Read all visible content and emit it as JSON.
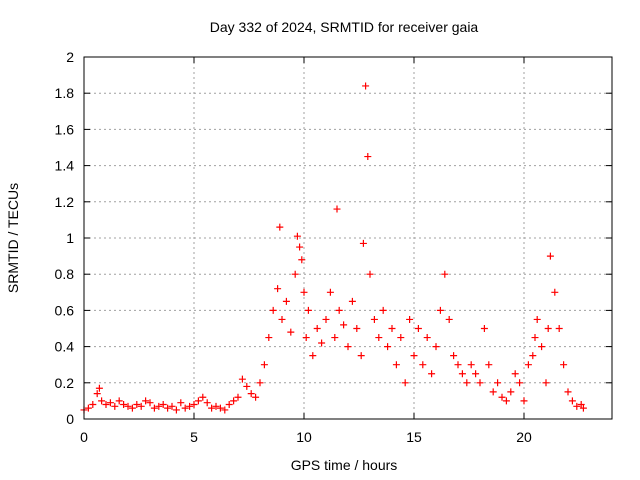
{
  "chart_data": {
    "type": "scatter",
    "title": "Day 332 of 2024, SRMTID for receiver gaia",
    "xlabel": "GPS time / hours",
    "ylabel": "SRMTID / TECUs",
    "xlim": [
      0,
      24
    ],
    "ylim": [
      0,
      2
    ],
    "xticks": [
      0,
      5,
      10,
      15,
      20
    ],
    "xtick_labels": [
      "0",
      "5",
      "10",
      "15",
      "20"
    ],
    "yticks": [
      0,
      0.2,
      0.4,
      0.6,
      0.8,
      1,
      1.2,
      1.4,
      1.6,
      1.8,
      2
    ],
    "ytick_labels": [
      "0",
      "0.2",
      "0.4",
      "0.6",
      "0.8",
      "1",
      "1.2",
      "1.4",
      "1.6",
      "1.8",
      "2"
    ],
    "grid": true,
    "marker": "+",
    "series": [
      {
        "name": "SRMTID",
        "color": "#ff0000",
        "x": [
          0.0,
          0.2,
          0.4,
          0.6,
          0.7,
          0.8,
          1.0,
          1.2,
          1.4,
          1.6,
          1.8,
          2.0,
          2.2,
          2.4,
          2.6,
          2.8,
          3.0,
          3.2,
          3.4,
          3.6,
          3.8,
          4.0,
          4.2,
          4.4,
          4.6,
          4.8,
          5.0,
          5.2,
          5.4,
          5.6,
          5.8,
          6.0,
          6.2,
          6.4,
          6.6,
          6.8,
          7.0,
          7.2,
          7.4,
          7.6,
          7.8,
          8.0,
          8.2,
          8.4,
          8.6,
          8.8,
          8.9,
          9.0,
          9.2,
          9.4,
          9.6,
          9.7,
          9.8,
          9.9,
          10.0,
          10.1,
          10.2,
          10.4,
          10.6,
          10.8,
          11.0,
          11.2,
          11.4,
          11.5,
          11.6,
          11.8,
          12.0,
          12.2,
          12.4,
          12.6,
          12.7,
          12.8,
          12.9,
          13.0,
          13.2,
          13.4,
          13.6,
          13.8,
          14.0,
          14.2,
          14.4,
          14.6,
          14.8,
          15.0,
          15.2,
          15.4,
          15.6,
          15.8,
          16.0,
          16.2,
          16.4,
          16.6,
          16.8,
          17.0,
          17.2,
          17.4,
          17.6,
          17.8,
          18.0,
          18.2,
          18.4,
          18.6,
          18.8,
          19.0,
          19.2,
          19.4,
          19.6,
          19.8,
          20.0,
          20.2,
          20.4,
          20.5,
          20.6,
          20.8,
          21.0,
          21.1,
          21.2,
          21.4,
          21.6,
          21.8,
          22.0,
          22.2,
          22.4,
          22.6,
          22.7
        ],
        "values": [
          0.05,
          0.06,
          0.08,
          0.14,
          0.17,
          0.1,
          0.08,
          0.09,
          0.07,
          0.1,
          0.08,
          0.07,
          0.06,
          0.08,
          0.07,
          0.1,
          0.09,
          0.06,
          0.07,
          0.08,
          0.06,
          0.07,
          0.05,
          0.09,
          0.06,
          0.07,
          0.08,
          0.1,
          0.12,
          0.09,
          0.06,
          0.07,
          0.06,
          0.05,
          0.08,
          0.1,
          0.12,
          0.22,
          0.18,
          0.14,
          0.12,
          0.2,
          0.3,
          0.45,
          0.6,
          0.72,
          1.06,
          0.55,
          0.65,
          0.48,
          0.8,
          1.01,
          0.95,
          0.88,
          0.7,
          0.45,
          0.6,
          0.35,
          0.5,
          0.42,
          0.55,
          0.7,
          0.45,
          1.16,
          0.6,
          0.52,
          0.4,
          0.65,
          0.5,
          0.35,
          0.97,
          1.84,
          1.45,
          0.8,
          0.55,
          0.45,
          0.6,
          0.4,
          0.5,
          0.3,
          0.45,
          0.2,
          0.55,
          0.35,
          0.5,
          0.3,
          0.45,
          0.25,
          0.4,
          0.6,
          0.8,
          0.55,
          0.35,
          0.3,
          0.25,
          0.2,
          0.3,
          0.25,
          0.2,
          0.5,
          0.3,
          0.15,
          0.2,
          0.12,
          0.1,
          0.15,
          0.25,
          0.2,
          0.1,
          0.3,
          0.35,
          0.45,
          0.55,
          0.4,
          0.2,
          0.5,
          0.9,
          0.7,
          0.5,
          0.3,
          0.15,
          0.1,
          0.07,
          0.08,
          0.06
        ]
      }
    ]
  }
}
